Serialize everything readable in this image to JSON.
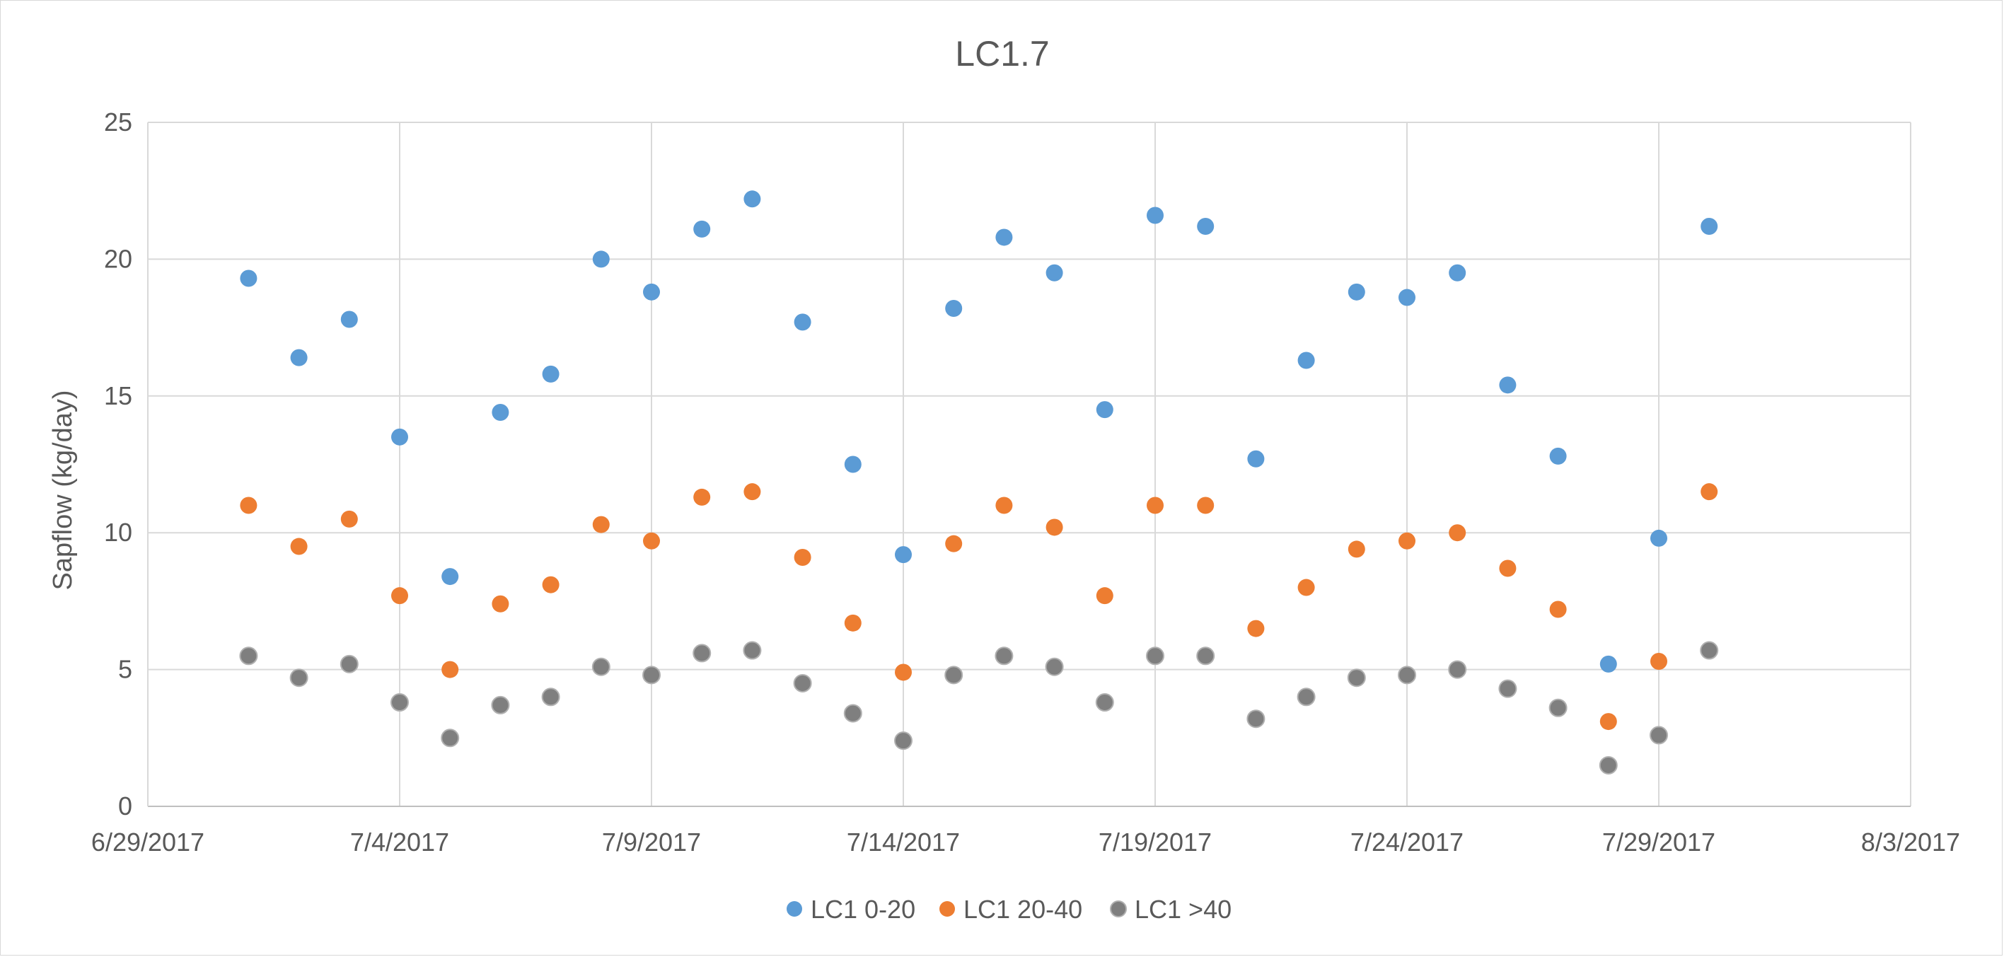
{
  "chart_data": {
    "type": "scatter",
    "title": "LC1.7",
    "xlabel": "",
    "ylabel": "Sapflow (kg/day)",
    "x_axis_type": "date",
    "xlim": [
      "2017-06-29",
      "2017-08-03"
    ],
    "ylim": [
      0,
      25
    ],
    "x_ticks": [
      "2017-06-29",
      "2017-07-04",
      "2017-07-09",
      "2017-07-14",
      "2017-07-19",
      "2017-07-24",
      "2017-07-29",
      "2017-08-03"
    ],
    "x_tick_labels": [
      "6/29/2017",
      "7/4/2017",
      "7/9/2017",
      "7/14/2017",
      "7/19/2017",
      "7/24/2017",
      "7/29/2017",
      "8/3/2017"
    ],
    "y_ticks": [
      0,
      5,
      10,
      15,
      20,
      25
    ],
    "y_tick_labels": [
      "0",
      "5",
      "10",
      "15",
      "20",
      "25"
    ],
    "grid": "on",
    "legend_position": "bottom",
    "x": [
      "2017-07-01",
      "2017-07-02",
      "2017-07-03",
      "2017-07-04",
      "2017-07-05",
      "2017-07-06",
      "2017-07-07",
      "2017-07-08",
      "2017-07-09",
      "2017-07-10",
      "2017-07-11",
      "2017-07-12",
      "2017-07-13",
      "2017-07-14",
      "2017-07-15",
      "2017-07-16",
      "2017-07-17",
      "2017-07-18",
      "2017-07-19",
      "2017-07-20",
      "2017-07-21",
      "2017-07-22",
      "2017-07-23",
      "2017-07-24",
      "2017-07-25",
      "2017-07-26",
      "2017-07-27",
      "2017-07-28",
      "2017-07-29",
      "2017-07-30"
    ],
    "series": [
      {
        "name": "LC1 0-20",
        "color": "#5b9bd5",
        "values": [
          19.3,
          16.4,
          17.8,
          13.5,
          8.4,
          14.4,
          15.8,
          20.0,
          18.8,
          21.1,
          22.2,
          17.7,
          12.5,
          9.2,
          18.2,
          20.8,
          19.5,
          14.5,
          21.6,
          21.2,
          12.7,
          16.3,
          18.8,
          18.6,
          19.5,
          15.4,
          12.8,
          5.2,
          9.8,
          21.2
        ]
      },
      {
        "name": "LC1 20-40",
        "color": "#ed7d31",
        "values": [
          11.0,
          9.5,
          10.5,
          7.7,
          5.0,
          7.4,
          8.1,
          10.3,
          9.7,
          11.3,
          11.5,
          9.1,
          6.7,
          4.9,
          9.6,
          11.0,
          10.2,
          7.7,
          11.0,
          11.0,
          6.5,
          8.0,
          9.4,
          9.7,
          10.0,
          8.7,
          7.2,
          3.1,
          5.3,
          11.5
        ]
      },
      {
        "name": "LC1 >40",
        "color": "#7f7f7f",
        "values": [
          5.5,
          4.7,
          5.2,
          3.8,
          2.5,
          3.7,
          4.0,
          5.1,
          4.8,
          5.6,
          5.7,
          4.5,
          3.4,
          2.4,
          4.8,
          5.5,
          5.1,
          3.8,
          5.5,
          5.5,
          3.2,
          4.0,
          4.7,
          4.8,
          5.0,
          4.3,
          3.6,
          1.5,
          2.6,
          5.7
        ]
      }
    ]
  }
}
